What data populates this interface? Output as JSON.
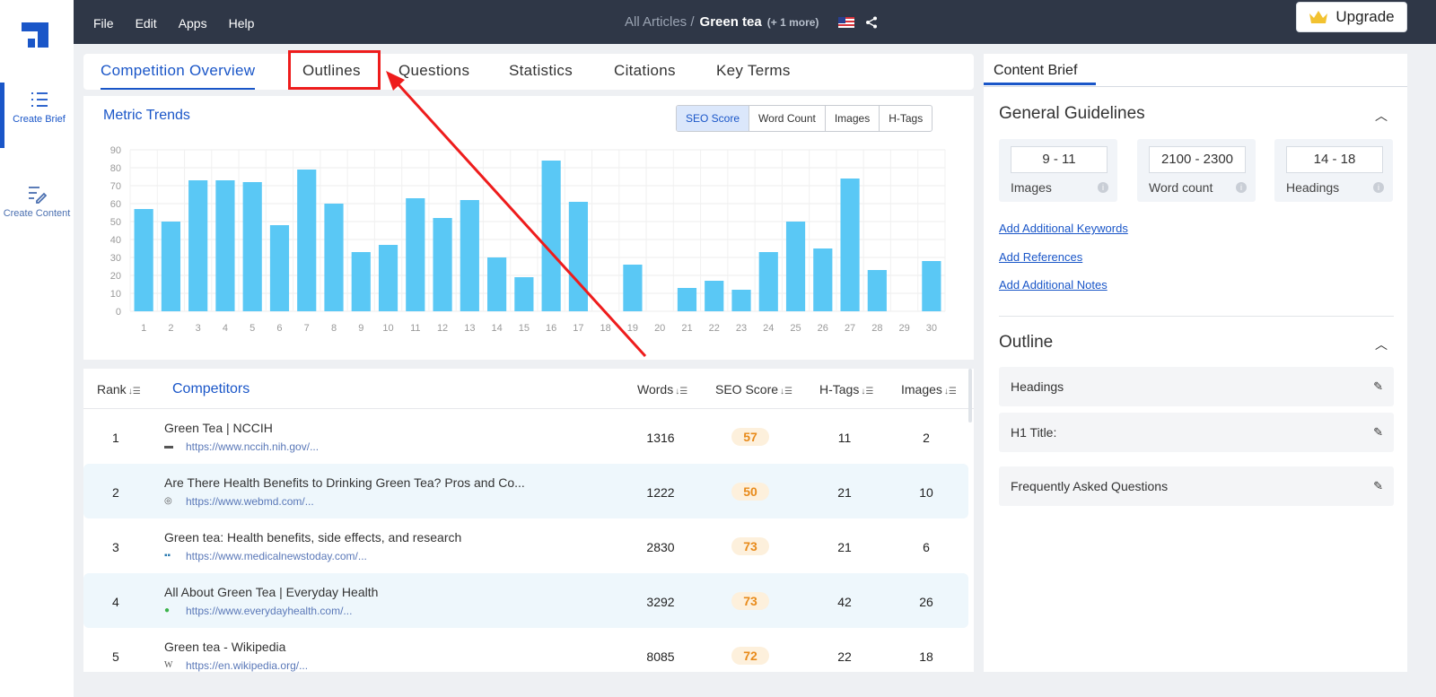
{
  "sidebar": {
    "items": [
      {
        "label": "Create Brief",
        "icon": "list-icon"
      },
      {
        "label": "Create Content",
        "icon": "edit-document-icon"
      }
    ]
  },
  "topbar": {
    "menu": [
      "File",
      "Edit",
      "Apps",
      "Help"
    ],
    "breadcrumb_root": "All Articles /",
    "breadcrumb_current": "Green tea",
    "breadcrumb_more": "(+ 1 more)",
    "upgrade_label": "Upgrade",
    "colors": {
      "bar": "#2f3747",
      "accent": "#1a56c8"
    }
  },
  "tabs": [
    "Competition Overview",
    "Outlines",
    "Questions",
    "Statistics",
    "Citations",
    "Key Terms"
  ],
  "chart_panel": {
    "title": "Metric Trends",
    "toggle": [
      "SEO Score",
      "Word Count",
      "Images",
      "H-Tags"
    ]
  },
  "chart_data": {
    "type": "bar",
    "categories": [
      "1",
      "2",
      "3",
      "4",
      "5",
      "6",
      "7",
      "8",
      "9",
      "10",
      "11",
      "12",
      "13",
      "14",
      "15",
      "16",
      "17",
      "18",
      "19",
      "20",
      "21",
      "22",
      "23",
      "24",
      "25",
      "26",
      "27",
      "28",
      "29",
      "30"
    ],
    "values": [
      57,
      50,
      73,
      73,
      72,
      48,
      79,
      60,
      33,
      37,
      63,
      52,
      62,
      30,
      19,
      84,
      61,
      0,
      26,
      0,
      13,
      17,
      12,
      33,
      50,
      35,
      74,
      23,
      0,
      28
    ],
    "ylim": [
      0,
      90
    ],
    "yticks": [
      "0",
      "10",
      "20",
      "30",
      "40",
      "50",
      "60",
      "70",
      "80",
      "90"
    ],
    "grid": true,
    "bar_color": "#5ac8f5"
  },
  "table": {
    "headers": {
      "rank": "Rank",
      "competitors": "Competitors",
      "words": "Words",
      "seo": "SEO Score",
      "htags": "H-Tags",
      "images": "Images"
    },
    "rows": [
      {
        "rank": "1",
        "title": "Green Tea | NCCIH",
        "url": "https://www.nccih.nih.gov/...",
        "words": "1316",
        "seo": "57",
        "htags": "11",
        "images": "2"
      },
      {
        "rank": "2",
        "title": "Are There Health Benefits to Drinking Green Tea? Pros and Co...",
        "url": "https://www.webmd.com/...",
        "words": "1222",
        "seo": "50",
        "htags": "21",
        "images": "10"
      },
      {
        "rank": "3",
        "title": "Green tea: Health benefits, side effects, and research",
        "url": "https://www.medicalnewstoday.com/...",
        "words": "2830",
        "seo": "73",
        "htags": "21",
        "images": "6"
      },
      {
        "rank": "4",
        "title": "All About Green Tea | Everyday Health",
        "url": "https://www.everydayhealth.com/...",
        "words": "3292",
        "seo": "73",
        "htags": "42",
        "images": "26"
      },
      {
        "rank": "5",
        "title": "Green tea - Wikipedia",
        "url": "https://en.wikipedia.org/...",
        "words": "8085",
        "seo": "72",
        "htags": "22",
        "images": "18"
      }
    ]
  },
  "brief": {
    "tab": "Content Brief",
    "general_title": "General Guidelines",
    "metrics": [
      {
        "value": "9 - 11",
        "label": "Images"
      },
      {
        "value": "2100 - 2300",
        "label": "Word count"
      },
      {
        "value": "14 - 18",
        "label": "Headings"
      }
    ],
    "links": [
      "Add Additional Keywords",
      "Add References",
      "Add Additional Notes"
    ],
    "outline_title": "Outline",
    "outline_rows": [
      "Headings",
      "H1 Title:",
      "Frequently Asked Questions"
    ]
  }
}
